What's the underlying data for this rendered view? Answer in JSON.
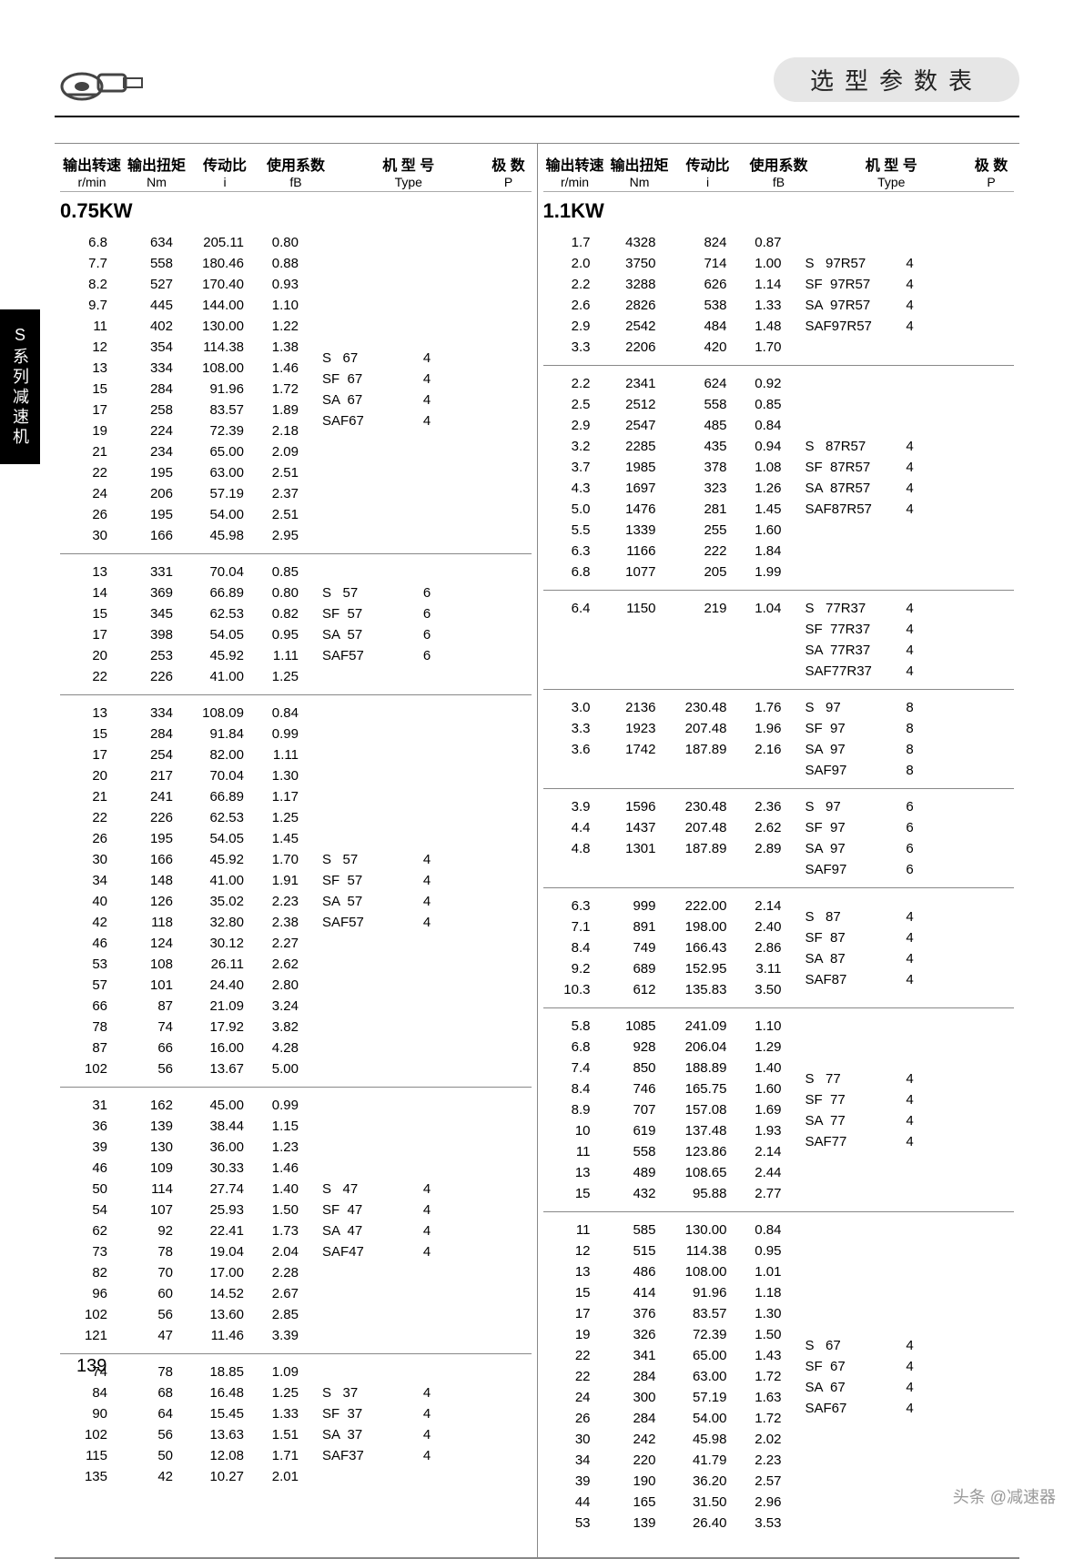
{
  "title": "选型参数表",
  "side_tab": "S系列减速机",
  "page_number": "139",
  "watermark": "头条 @减速器",
  "columns_head": [
    {
      "cn": "输出转速",
      "unit": "r/min"
    },
    {
      "cn": "输出扭矩",
      "unit": "Nm"
    },
    {
      "cn": "传动比",
      "unit": "i"
    },
    {
      "cn": "使用系数",
      "unit": "fB"
    },
    {
      "cn": "机 型 号",
      "unit": "Type"
    },
    {
      "cn": "极  数",
      "unit": "P"
    }
  ],
  "left": {
    "kw": "0.75KW",
    "blocks": [
      {
        "rows": [
          [
            "6.8",
            "634",
            "205.11",
            "0.80"
          ],
          [
            "7.7",
            "558",
            "180.46",
            "0.88"
          ],
          [
            "8.2",
            "527",
            "170.40",
            "0.93"
          ],
          [
            "9.7",
            "445",
            "144.00",
            "1.10"
          ],
          [
            "11",
            "402",
            "130.00",
            "1.22"
          ],
          [
            "12",
            "354",
            "114.38",
            "1.38"
          ],
          [
            "13",
            "334",
            "108.00",
            "1.46"
          ],
          [
            "15",
            "284",
            "91.96",
            "1.72"
          ],
          [
            "17",
            "258",
            "83.57",
            "1.89"
          ],
          [
            "19",
            "224",
            "72.39",
            "2.18"
          ],
          [
            "21",
            "234",
            "65.00",
            "2.09"
          ],
          [
            "22",
            "195",
            "63.00",
            "2.51"
          ],
          [
            "24",
            "206",
            "57.19",
            "2.37"
          ],
          [
            "26",
            "195",
            "54.00",
            "2.51"
          ],
          [
            "30",
            "166",
            "45.98",
            "2.95"
          ]
        ],
        "types": [
          [
            "S   67",
            "4"
          ],
          [
            "SF  67",
            "4"
          ],
          [
            "SA  67",
            "4"
          ],
          [
            "SAF67",
            "4"
          ]
        ]
      },
      {
        "rows": [
          [
            "13",
            "331",
            "70.04",
            "0.85"
          ],
          [
            "14",
            "369",
            "66.89",
            "0.80"
          ],
          [
            "15",
            "345",
            "62.53",
            "0.82"
          ],
          [
            "17",
            "398",
            "54.05",
            "0.95"
          ],
          [
            "20",
            "253",
            "45.92",
            "1.11"
          ],
          [
            "22",
            "226",
            "41.00",
            "1.25"
          ]
        ],
        "types": [
          [
            "S   57",
            "6"
          ],
          [
            "SF  57",
            "6"
          ],
          [
            "SA  57",
            "6"
          ],
          [
            "SAF57",
            "6"
          ]
        ]
      },
      {
        "rows": [
          [
            "13",
            "334",
            "108.09",
            "0.84"
          ],
          [
            "15",
            "284",
            "91.84",
            "0.99"
          ],
          [
            "17",
            "254",
            "82.00",
            "1.11"
          ],
          [
            "20",
            "217",
            "70.04",
            "1.30"
          ],
          [
            "21",
            "241",
            "66.89",
            "1.17"
          ],
          [
            "22",
            "226",
            "62.53",
            "1.25"
          ],
          [
            "26",
            "195",
            "54.05",
            "1.45"
          ],
          [
            "30",
            "166",
            "45.92",
            "1.70"
          ],
          [
            "34",
            "148",
            "41.00",
            "1.91"
          ],
          [
            "40",
            "126",
            "35.02",
            "2.23"
          ],
          [
            "42",
            "118",
            "32.80",
            "2.38"
          ],
          [
            "46",
            "124",
            "30.12",
            "2.27"
          ],
          [
            "53",
            "108",
            "26.11",
            "2.62"
          ],
          [
            "57",
            "101",
            "24.40",
            "2.80"
          ],
          [
            "66",
            "87",
            "21.09",
            "3.24"
          ],
          [
            "78",
            "74",
            "17.92",
            "3.82"
          ],
          [
            "87",
            "66",
            "16.00",
            "4.28"
          ],
          [
            "102",
            "56",
            "13.67",
            "5.00"
          ]
        ],
        "types": [
          [
            "S   57",
            "4"
          ],
          [
            "SF  57",
            "4"
          ],
          [
            "SA  57",
            "4"
          ],
          [
            "SAF57",
            "4"
          ]
        ]
      },
      {
        "rows": [
          [
            "31",
            "162",
            "45.00",
            "0.99"
          ],
          [
            "36",
            "139",
            "38.44",
            "1.15"
          ],
          [
            "39",
            "130",
            "36.00",
            "1.23"
          ],
          [
            "46",
            "109",
            "30.33",
            "1.46"
          ],
          [
            "50",
            "114",
            "27.74",
            "1.40"
          ],
          [
            "54",
            "107",
            "25.93",
            "1.50"
          ],
          [
            "62",
            "92",
            "22.41",
            "1.73"
          ],
          [
            "73",
            "78",
            "19.04",
            "2.04"
          ],
          [
            "82",
            "70",
            "17.00",
            "2.28"
          ],
          [
            "96",
            "60",
            "14.52",
            "2.67"
          ],
          [
            "102",
            "56",
            "13.60",
            "2.85"
          ],
          [
            "121",
            "47",
            "11.46",
            "3.39"
          ]
        ],
        "types": [
          [
            "S   47",
            "4"
          ],
          [
            "SF  47",
            "4"
          ],
          [
            "SA  47",
            "4"
          ],
          [
            "SAF47",
            "4"
          ]
        ]
      },
      {
        "rows": [
          [
            "74",
            "78",
            "18.85",
            "1.09"
          ],
          [
            "84",
            "68",
            "16.48",
            "1.25"
          ],
          [
            "90",
            "64",
            "15.45",
            "1.33"
          ],
          [
            "102",
            "56",
            "13.63",
            "1.51"
          ],
          [
            "115",
            "50",
            "12.08",
            "1.71"
          ],
          [
            "135",
            "42",
            "10.27",
            "2.01"
          ]
        ],
        "types": [
          [
            "S   37",
            "4"
          ],
          [
            "SF  37",
            "4"
          ],
          [
            "SA  37",
            "4"
          ],
          [
            "SAF37",
            "4"
          ]
        ]
      }
    ]
  },
  "right": {
    "kw": "1.1KW",
    "blocks": [
      {
        "rows": [
          [
            "1.7",
            "4328",
            "824",
            "0.87"
          ],
          [
            "2.0",
            "3750",
            "714",
            "1.00"
          ],
          [
            "2.2",
            "3288",
            "626",
            "1.14"
          ],
          [
            "2.6",
            "2826",
            "538",
            "1.33"
          ],
          [
            "2.9",
            "2542",
            "484",
            "1.48"
          ],
          [
            "3.3",
            "2206",
            "420",
            "1.70"
          ]
        ],
        "types": [
          [
            "S   97R57",
            "4"
          ],
          [
            "SF  97R57",
            "4"
          ],
          [
            "SA  97R57",
            "4"
          ],
          [
            "SAF97R57",
            "4"
          ]
        ]
      },
      {
        "rows": [
          [
            "2.2",
            "2341",
            "624",
            "0.92"
          ],
          [
            "2.5",
            "2512",
            "558",
            "0.85"
          ],
          [
            "2.9",
            "2547",
            "485",
            "0.84"
          ],
          [
            "3.2",
            "2285",
            "435",
            "0.94"
          ],
          [
            "3.7",
            "1985",
            "378",
            "1.08"
          ],
          [
            "4.3",
            "1697",
            "323",
            "1.26"
          ],
          [
            "5.0",
            "1476",
            "281",
            "1.45"
          ],
          [
            "5.5",
            "1339",
            "255",
            "1.60"
          ],
          [
            "6.3",
            "1166",
            "222",
            "1.84"
          ],
          [
            "6.8",
            "1077",
            "205",
            "1.99"
          ]
        ],
        "types": [
          [
            "S   87R57",
            "4"
          ],
          [
            "SF  87R57",
            "4"
          ],
          [
            "SA  87R57",
            "4"
          ],
          [
            "SAF87R57",
            "4"
          ]
        ]
      },
      {
        "rows": [
          [
            "6.4",
            "1150",
            "219",
            "1.04"
          ]
        ],
        "types": [
          [
            "S   77R37",
            "4"
          ],
          [
            "SF  77R37",
            "4"
          ],
          [
            "SA  77R37",
            "4"
          ],
          [
            "SAF77R37",
            "4"
          ]
        ]
      },
      {
        "rows": [
          [
            "3.0",
            "2136",
            "230.48",
            "1.76"
          ],
          [
            "3.3",
            "1923",
            "207.48",
            "1.96"
          ],
          [
            "3.6",
            "1742",
            "187.89",
            "2.16"
          ]
        ],
        "types": [
          [
            "S   97",
            "8"
          ],
          [
            "SF  97",
            "8"
          ],
          [
            "SA  97",
            "8"
          ],
          [
            "SAF97",
            "8"
          ]
        ]
      },
      {
        "rows": [
          [
            "3.9",
            "1596",
            "230.48",
            "2.36"
          ],
          [
            "4.4",
            "1437",
            "207.48",
            "2.62"
          ],
          [
            "4.8",
            "1301",
            "187.89",
            "2.89"
          ]
        ],
        "types": [
          [
            "S   97",
            "6"
          ],
          [
            "SF  97",
            "6"
          ],
          [
            "SA  97",
            "6"
          ],
          [
            "SAF97",
            "6"
          ]
        ]
      },
      {
        "rows": [
          [
            "6.3",
            "999",
            "222.00",
            "2.14"
          ],
          [
            "7.1",
            "891",
            "198.00",
            "2.40"
          ],
          [
            "8.4",
            "749",
            "166.43",
            "2.86"
          ],
          [
            "9.2",
            "689",
            "152.95",
            "3.11"
          ],
          [
            "10.3",
            "612",
            "135.83",
            "3.50"
          ]
        ],
        "types": [
          [
            "S   87",
            "4"
          ],
          [
            "SF  87",
            "4"
          ],
          [
            "SA  87",
            "4"
          ],
          [
            "SAF87",
            "4"
          ]
        ]
      },
      {
        "rows": [
          [
            "5.8",
            "1085",
            "241.09",
            "1.10"
          ],
          [
            "6.8",
            "928",
            "206.04",
            "1.29"
          ],
          [
            "7.4",
            "850",
            "188.89",
            "1.40"
          ],
          [
            "8.4",
            "746",
            "165.75",
            "1.60"
          ],
          [
            "8.9",
            "707",
            "157.08",
            "1.69"
          ],
          [
            "10",
            "619",
            "137.48",
            "1.93"
          ],
          [
            "11",
            "558",
            "123.86",
            "2.14"
          ],
          [
            "13",
            "489",
            "108.65",
            "2.44"
          ],
          [
            "15",
            "432",
            "95.88",
            "2.77"
          ]
        ],
        "types": [
          [
            "S   77",
            "4"
          ],
          [
            "SF  77",
            "4"
          ],
          [
            "SA  77",
            "4"
          ],
          [
            "SAF77",
            "4"
          ]
        ]
      },
      {
        "rows": [
          [
            "11",
            "585",
            "130.00",
            "0.84"
          ],
          [
            "12",
            "515",
            "114.38",
            "0.95"
          ],
          [
            "13",
            "486",
            "108.00",
            "1.01"
          ],
          [
            "15",
            "414",
            "91.96",
            "1.18"
          ],
          [
            "17",
            "376",
            "83.57",
            "1.30"
          ],
          [
            "19",
            "326",
            "72.39",
            "1.50"
          ],
          [
            "22",
            "341",
            "65.00",
            "1.43"
          ],
          [
            "22",
            "284",
            "63.00",
            "1.72"
          ],
          [
            "24",
            "300",
            "57.19",
            "1.63"
          ],
          [
            "26",
            "284",
            "54.00",
            "1.72"
          ],
          [
            "30",
            "242",
            "45.98",
            "2.02"
          ],
          [
            "34",
            "220",
            "41.79",
            "2.23"
          ],
          [
            "39",
            "190",
            "36.20",
            "2.57"
          ],
          [
            "44",
            "165",
            "31.50",
            "2.96"
          ],
          [
            "53",
            "139",
            "26.40",
            "3.53"
          ]
        ],
        "types": [
          [
            "S   67",
            "4"
          ],
          [
            "SF  67",
            "4"
          ],
          [
            "SA  67",
            "4"
          ],
          [
            "SAF67",
            "4"
          ]
        ]
      }
    ]
  }
}
